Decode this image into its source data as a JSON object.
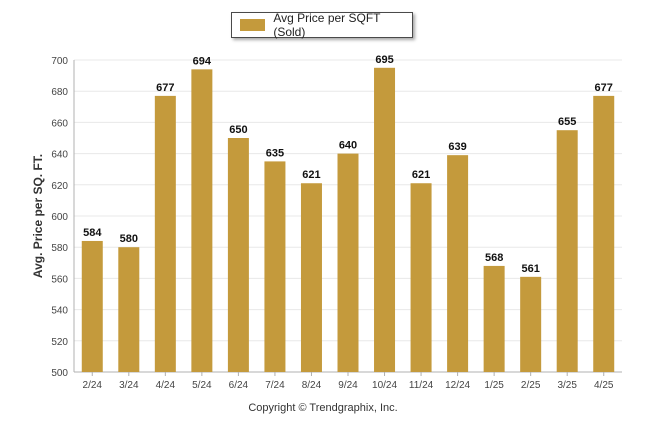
{
  "legend": {
    "label": "Avg Price per SQFT (Sold)"
  },
  "copyright": "Copyright © Trendgraphix, Inc.",
  "colors": {
    "bar": "#C49A3C",
    "grid": "#e8e8e8",
    "axis": "#b0b0b0",
    "text": "#333333"
  },
  "chart_data": {
    "type": "bar",
    "title": "",
    "xlabel": "",
    "ylabel": "Avg. Price per SQ. FT.",
    "ylim": [
      500,
      700
    ],
    "yticks": [
      500,
      520,
      540,
      560,
      580,
      600,
      620,
      640,
      660,
      680,
      700
    ],
    "grid": true,
    "legend_position": "top-center",
    "categories": [
      "2/24",
      "3/24",
      "4/24",
      "5/24",
      "6/24",
      "7/24",
      "8/24",
      "9/24",
      "10/24",
      "11/24",
      "12/24",
      "1/25",
      "2/25",
      "3/25",
      "4/25"
    ],
    "series": [
      {
        "name": "Avg Price per SQFT (Sold)",
        "values": [
          584,
          580,
          677,
          694,
          650,
          635,
          621,
          640,
          695,
          621,
          639,
          568,
          561,
          655,
          677
        ]
      }
    ]
  }
}
